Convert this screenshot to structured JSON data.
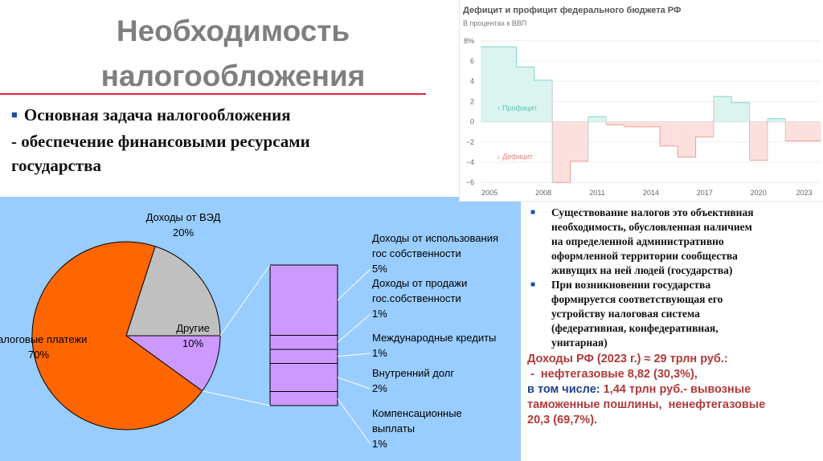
{
  "slide": {
    "title_line1": "Необходимость",
    "title_line2": "налогообложения",
    "task_line1": "Основная задача налогообложения",
    "task_line2": "- обеспечение финансовыми ресурсами",
    "task_line3": "государства",
    "bullet_glyph": "■",
    "bullets": [
      [
        "Существование налогов это объективная",
        "необходимость, обусловленная наличием",
        "на определенной административно",
        "оформленной территории сообщества",
        "живущих на ней людей (государства)"
      ],
      [
        "При возникновении государства",
        "формируется соответствующая его",
        "устройству налоговая система",
        "(федеративная, конфедеративная,",
        "унитарная)"
      ]
    ],
    "revenue": {
      "line1": "Доходы РФ (2023 г.) ≈ 29 трлн руб.:",
      "line2": " -  нефтегазовые 8,82 (30,3%),",
      "line3a": "в том числе: ",
      "line3b": "1,44 трлн руб.- вывозные",
      "line4": "таможенные пошлины,  ненефтегазовые",
      "line5": "20,3 (69,7%).",
      "colors": {
        "red": "#b03a3a",
        "blue": "#1f3f8a"
      }
    }
  },
  "chart_data": [
    {
      "type": "pie",
      "colors": {
        "Налоговые платежи": "#ff6600",
        "Доходы от ВЭД": "#c0c0c0",
        "Другие": "#cc99ff"
      },
      "slices": [
        {
          "label": "Налоговые платежи",
          "value": 70,
          "value_label": "70%"
        },
        {
          "label": "Доходы от ВЭД",
          "value": 20,
          "value_label": "20%"
        },
        {
          "label": "Другие",
          "value": 10,
          "value_label": "10%"
        }
      ],
      "breakdown_of": "Другие",
      "breakdown": [
        {
          "lines": [
            "Доходы от использования",
            "гос собственности"
          ],
          "value": 5,
          "value_label": "5%"
        },
        {
          "lines": [
            "Доходы от продажи",
            "гос.собственности"
          ],
          "value": 1,
          "value_label": "1%"
        },
        {
          "lines": [
            "Международные кредиты"
          ],
          "value": 1,
          "value_label": "1%"
        },
        {
          "lines": [
            "Внутренний долг"
          ],
          "value": 2,
          "value_label": "2%"
        },
        {
          "lines": [
            "Компенсационные",
            "выплаты"
          ],
          "value": 1,
          "value_label": "1%"
        }
      ]
    },
    {
      "type": "area",
      "title": "Дефицит и профицит федерального бюджета РФ",
      "subtitle": "В процентах к ВВП",
      "y_ticks": [
        "8%",
        "6",
        "4",
        "2",
        "0",
        "−2",
        "−4",
        "−6"
      ],
      "y_tick_values": [
        8,
        6,
        4,
        2,
        0,
        -2,
        -4,
        -6
      ],
      "ylim": [
        -6.3,
        8.3
      ],
      "xlim": [
        2004.5,
        2023.6
      ],
      "x_ticks": [
        "2005",
        "2008",
        "2011",
        "2014",
        "2017",
        "2020",
        "2023"
      ],
      "x_tick_values": [
        2005,
        2008,
        2011,
        2014,
        2017,
        2020,
        2023
      ],
      "years": [
        2005,
        2006,
        2007,
        2008,
        2009,
        2010,
        2011,
        2012,
        2013,
        2014,
        2015,
        2016,
        2017,
        2018,
        2019,
        2020,
        2021,
        2022,
        2023
      ],
      "values": [
        7.4,
        7.4,
        5.4,
        4.1,
        -6.0,
        -3.9,
        0.5,
        -0.3,
        -0.5,
        -0.5,
        -2.4,
        -3.5,
        -1.5,
        2.5,
        1.9,
        -3.8,
        0.3,
        -1.9,
        -1.9
      ],
      "annotations": [
        "↑ Профицит",
        "↓ Дефицит"
      ],
      "colors": {
        "surplus_fill": "#dbf4f0",
        "surplus_line": "#7fd6c8",
        "deficit_fill": "#fbe0de",
        "deficit_line": "#ef9e98",
        "surplus_text": "#5cc4b2",
        "deficit_text": "#e8837b"
      }
    }
  ]
}
